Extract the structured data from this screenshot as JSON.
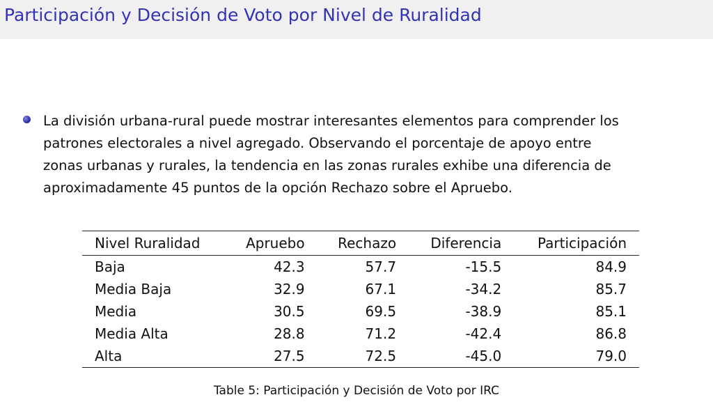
{
  "slide": {
    "title": "Participación y Decisión de Voto por Nivel de Ruralidad",
    "paragraph_lines": [
      "La división urbana-rural puede mostrar interesantes elementos para comprender los",
      "patrones electorales a nivel agregado. Observando el porcentaje de apoyo entre",
      "zonas urbanas y rurales, la tendencia en las zonas rurales exhibe una diferencia de",
      "aproximadamente 45 puntos de la opción Rechazo sobre el Apruebo."
    ],
    "bullet_color": "#3333b3",
    "title_color": "#3333b3"
  },
  "table": {
    "headers": [
      "Nivel Ruralidad",
      "Apruebo",
      "Rechazo",
      "Diferencia",
      "Participación"
    ],
    "rows": [
      [
        "Baja",
        "42.3",
        "57.7",
        "-15.5",
        "84.9"
      ],
      [
        "Media Baja",
        "32.9",
        "67.1",
        "-34.2",
        "85.7"
      ],
      [
        "Media",
        "30.5",
        "69.5",
        "-38.9",
        "85.1"
      ],
      [
        "Media Alta",
        "28.8",
        "71.2",
        "-42.4",
        "86.8"
      ],
      [
        "Alta",
        "27.5",
        "72.5",
        "-45.0",
        "79.0"
      ]
    ],
    "caption": "Table 5: Participación y Decisión de Voto por IRC"
  }
}
